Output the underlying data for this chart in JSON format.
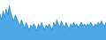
{
  "values": [
    72,
    60,
    78,
    65,
    82,
    70,
    88,
    75,
    65,
    58,
    70,
    62,
    55,
    48,
    60,
    52,
    42,
    55,
    48,
    38,
    50,
    44,
    52,
    46,
    38,
    52,
    44,
    55,
    48,
    40,
    50,
    45,
    52,
    46,
    40,
    55,
    48,
    60,
    52,
    45,
    58,
    50,
    44,
    55,
    48,
    42,
    52,
    46,
    55,
    48,
    52,
    45,
    50,
    55,
    48,
    52,
    46,
    52,
    48,
    55,
    50,
    45,
    52,
    48,
    55,
    50,
    58,
    52,
    48,
    55
  ],
  "fill_color": "#4da8e8",
  "line_color": "#2080c0",
  "background_color": "#ffffff",
  "ylim_min": 20,
  "ylim_max": 100
}
